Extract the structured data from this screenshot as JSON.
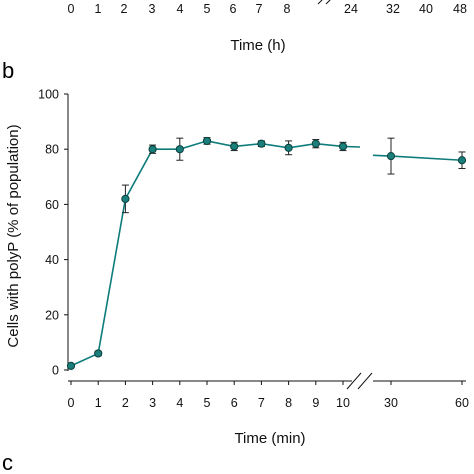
{
  "top_panel": {
    "tick_labels": [
      "0",
      "1",
      "2",
      "3",
      "4",
      "5",
      "6",
      "7",
      "8",
      "24",
      "32",
      "40",
      "48"
    ],
    "xlabel": "Time (h)"
  },
  "panel_b_letter": "b",
  "panel_c_letter": "c",
  "chart_data": {
    "type": "line",
    "title": "",
    "xlabel": "Time (min)",
    "ylabel": "Cells with polyP (% of population)",
    "ylim": [
      0,
      100
    ],
    "yticks": [
      0,
      20,
      40,
      60,
      80,
      100
    ],
    "x_ticks": [
      "0",
      "1",
      "2",
      "3",
      "4",
      "5",
      "6",
      "7",
      "8",
      "9",
      "10",
      "30",
      "60"
    ],
    "x_axis_break": "between 10 and 30",
    "grid": false,
    "series_color": "#0e7c7b",
    "marker_fill": "#1a7f7a",
    "series": [
      {
        "x": [
          0,
          1,
          2,
          3,
          4,
          5,
          6,
          7,
          8,
          9,
          10,
          30,
          60
        ],
        "y": [
          1.5,
          6,
          62,
          80,
          80,
          83,
          81,
          82,
          80.5,
          82,
          81,
          77.5,
          76
        ],
        "error": [
          0.5,
          0.8,
          5,
          1.5,
          4,
          1.2,
          1.5,
          1,
          2.5,
          1.5,
          1.5,
          6.5,
          3
        ]
      }
    ]
  }
}
